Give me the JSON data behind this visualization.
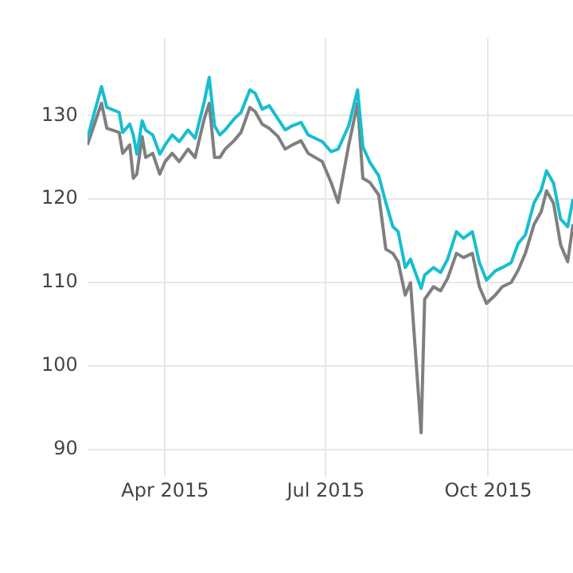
{
  "chart_data": {
    "type": "line",
    "x": [
      "2015-02-16",
      "2015-02-24",
      "2015-02-27",
      "2015-03-06",
      "2015-03-08",
      "2015-03-12",
      "2015-03-14",
      "2015-03-16",
      "2015-03-19",
      "2015-03-21",
      "2015-03-25",
      "2015-03-29",
      "2015-04-01",
      "2015-04-05",
      "2015-04-09",
      "2015-04-14",
      "2015-04-18",
      "2015-04-23",
      "2015-04-26",
      "2015-04-29",
      "2015-05-02",
      "2015-05-05",
      "2015-05-10",
      "2015-05-14",
      "2015-05-19",
      "2015-05-22",
      "2015-05-26",
      "2015-05-30",
      "2015-06-04",
      "2015-06-08",
      "2015-06-12",
      "2015-06-17",
      "2015-06-21",
      "2015-06-25",
      "2015-06-29",
      "2015-07-04",
      "2015-07-08",
      "2015-07-14",
      "2015-07-19",
      "2015-07-22",
      "2015-07-26",
      "2015-07-31",
      "2015-08-04",
      "2015-08-08",
      "2015-08-11",
      "2015-08-15",
      "2015-08-18",
      "2015-08-24",
      "2015-08-26",
      "2015-08-31",
      "2015-09-04",
      "2015-09-08",
      "2015-09-13",
      "2015-09-17",
      "2015-09-22",
      "2015-09-26",
      "2015-09-30",
      "2015-10-05",
      "2015-10-09",
      "2015-10-14",
      "2015-10-18",
      "2015-10-22",
      "2015-10-27",
      "2015-10-31",
      "2015-11-03",
      "2015-11-07",
      "2015-11-11",
      "2015-11-15",
      "2015-11-18"
    ],
    "series": [
      {
        "color": "#17becf",
        "values": [
          127.3,
          133.5,
          131,
          130.4,
          128,
          129,
          127.7,
          125.4,
          129.4,
          128.3,
          127.7,
          125.4,
          126.5,
          127.7,
          126.9,
          128.3,
          127.3,
          131.5,
          134.6,
          128.8,
          127.7,
          128.3,
          129.6,
          130.4,
          133.1,
          132.7,
          130.8,
          131.2,
          129.6,
          128.3,
          128.8,
          129.2,
          127.7,
          127.3,
          126.9,
          125.7,
          126,
          128.8,
          133.1,
          126.3,
          124.4,
          122.8,
          119.6,
          116.7,
          116.1,
          111.8,
          112.8,
          109.3,
          110.9,
          111.8,
          111.2,
          112.8,
          116.1,
          115.3,
          116.1,
          112.4,
          110.3,
          111.4,
          111.8,
          112.4,
          114.7,
          115.7,
          119.6,
          121.1,
          123.4,
          121.9,
          117.6,
          116.7,
          120
        ]
      },
      {
        "color": "#7f7f7f",
        "values": [
          126.5,
          131.5,
          128.5,
          128,
          125.5,
          126.5,
          122.5,
          123,
          127.5,
          125,
          125.5,
          123,
          124.5,
          125.5,
          124.5,
          126,
          125,
          129.5,
          131.5,
          125,
          125,
          126,
          127,
          128,
          131,
          130.5,
          129,
          128.5,
          127.5,
          126,
          126.5,
          127,
          125.5,
          125,
          124.5,
          122,
          119.6,
          126.5,
          131.5,
          122.5,
          122,
          120.5,
          114,
          113.5,
          112.5,
          108.5,
          110,
          92,
          108,
          109.5,
          109,
          110.5,
          113.5,
          113,
          113.5,
          109.5,
          107.5,
          108.5,
          109.5,
          110,
          111.5,
          113.5,
          117,
          118.5,
          121,
          119.5,
          114.5,
          112.5,
          117
        ]
      }
    ],
    "xlim": [
      "2015-02-16",
      "2015-11-18"
    ],
    "xticks": [
      {
        "value": "2015-04-01",
        "label": "Apr 2015"
      },
      {
        "value": "2015-07-01",
        "label": "Jul 2015"
      },
      {
        "value": "2015-10-01",
        "label": "Oct 2015"
      }
    ],
    "ylim": [
      86.7,
      139.3
    ],
    "yticks": [
      90,
      100,
      110,
      120,
      130
    ],
    "grid": true,
    "line_style": "solid",
    "marker": "none",
    "legend": false
  }
}
